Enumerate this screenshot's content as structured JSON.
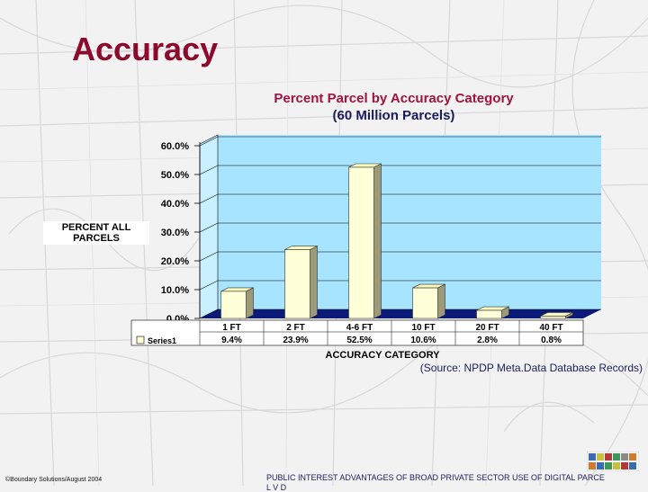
{
  "slide": {
    "title": "Accuracy",
    "source_note": "(Source: NPDP Meta.Data Database Records)",
    "footer_left": "©Boundary Solutions/August 2004",
    "footer_right": "PUBLIC INTEREST ADVANTAGES OF BROAD PRIVATE SECTOR USE OF DIGITAL PARCE",
    "footer_right_line2": "L V D"
  },
  "chart_data": {
    "type": "bar",
    "title_line1": "Percent Parcel by Accuracy Category",
    "title_line2": "(60 Million Parcels)",
    "xlabel": "ACCURACY CATEGORY",
    "ylabel_line1": "PERCENT ALL",
    "ylabel_line2": "PARCELS",
    "categories": [
      "1 FT",
      "2 FT",
      "4-6 FT",
      "10 FT",
      "20 FT",
      "40 FT"
    ],
    "series": [
      {
        "name": "Series1",
        "values": [
          9.4,
          23.9,
          52.5,
          10.6,
          2.8,
          0.8
        ]
      }
    ],
    "value_labels": [
      "9.4%",
      "23.9%",
      "52.5%",
      "10.6%",
      "2.8%",
      "0.8%"
    ],
    "y_ticks": [
      "0.0%",
      "10.0%",
      "20.0%",
      "30.0%",
      "40.0%",
      "50.0%",
      "60.0%"
    ],
    "ylim": [
      0,
      60
    ],
    "data_table": true,
    "colors": {
      "wall": "#a6e4ff",
      "floor": "#0a1a78",
      "bar_front": "#ffffd8",
      "bar_side": "#9c9a78",
      "bar_top": "#fafac0"
    }
  }
}
